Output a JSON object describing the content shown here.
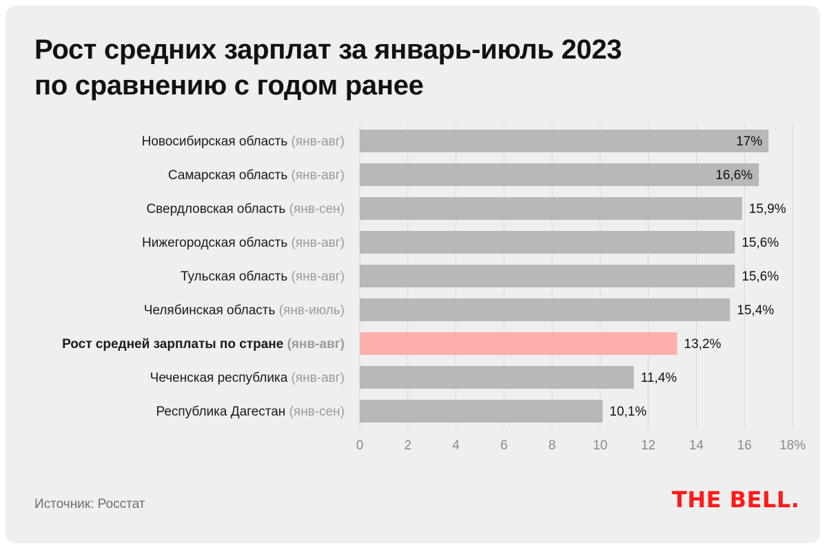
{
  "title": {
    "line1": "Рост средних зарплат за январь-июль 2023",
    "line2": "по сравнению с годом ранее"
  },
  "source": "Источник: Росстат",
  "logo": "THE BELL.",
  "colors": {
    "bar": "#b8b8b8",
    "highlight_bar": "#ffb0aa",
    "background": "#efefef",
    "grid": "#d6d6d6",
    "logo": "#ff1a1a",
    "note": "#9a9a9a"
  },
  "chart_data": {
    "type": "bar",
    "orientation": "horizontal",
    "categories": [
      {
        "name": "Новосибирская область",
        "period": "(янв-авг)",
        "highlight": false
      },
      {
        "name": "Самарская область",
        "period": "(янв-авг)",
        "highlight": false
      },
      {
        "name": "Свердловская область",
        "period": "(янв-сен)",
        "highlight": false
      },
      {
        "name": "Нижегородская область",
        "period": "(янв-авг)",
        "highlight": false
      },
      {
        "name": "Тульская область",
        "period": "(янв-авг)",
        "highlight": false
      },
      {
        "name": "Челябинская область",
        "period": "(янв-июль)",
        "highlight": false
      },
      {
        "name": "Рост средней зарплаты по стране",
        "period": "(янв-авг)",
        "highlight": true
      },
      {
        "name": "Чеченская республика",
        "period": "(янв-авг)",
        "highlight": false
      },
      {
        "name": "Республика Дагестан",
        "period": "(янв-сен)",
        "highlight": false
      }
    ],
    "values": [
      17,
      16.6,
      15.9,
      15.6,
      15.6,
      15.4,
      13.2,
      11.4,
      10.1
    ],
    "value_labels": [
      "17%",
      "16,6%",
      "15,9%",
      "15,6%",
      "15,6%",
      "15,4%",
      "13,2%",
      "11,4%",
      "10,1%"
    ],
    "xlim": [
      0,
      18
    ],
    "xticks": [
      0,
      2,
      4,
      6,
      8,
      10,
      12,
      14,
      16,
      18
    ],
    "xtick_labels": [
      "0",
      "2",
      "4",
      "6",
      "8",
      "10",
      "12",
      "14",
      "16",
      "18%"
    ],
    "grid": true
  }
}
